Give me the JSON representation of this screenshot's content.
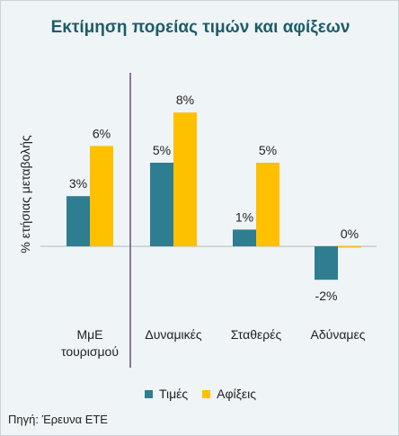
{
  "title": "Εκτίμηση πορείας τιμών και αφίξεων",
  "source": "Πηγή: Έρευνα ΕΤΕ",
  "colors": {
    "prices": "#2e7d91",
    "arrivals": "#ffc000",
    "divider": "#6a4a8c",
    "axis": "#b0b7bb"
  },
  "chart_data": {
    "type": "bar",
    "title": "Εκτίμηση πορείας τιμών και αφίξεων",
    "ylabel": "% ετήσιας μεταβολής",
    "xlabel": "",
    "categories": [
      "ΜμΕ τουρισμού",
      "Δυναμικές",
      "Σταθερές",
      "Αδύναμες"
    ],
    "series": [
      {
        "name": "Τιμές",
        "values": [
          3,
          5,
          1,
          -2
        ],
        "labels": [
          "3%",
          "5%",
          "1%",
          "-2%"
        ]
      },
      {
        "name": "Αφίξεις",
        "values": [
          6,
          8,
          5,
          0
        ],
        "labels": [
          "6%",
          "8%",
          "5%",
          "0%"
        ]
      }
    ],
    "ylim": [
      -2,
      8
    ],
    "grid": false,
    "legend": "bottom"
  }
}
